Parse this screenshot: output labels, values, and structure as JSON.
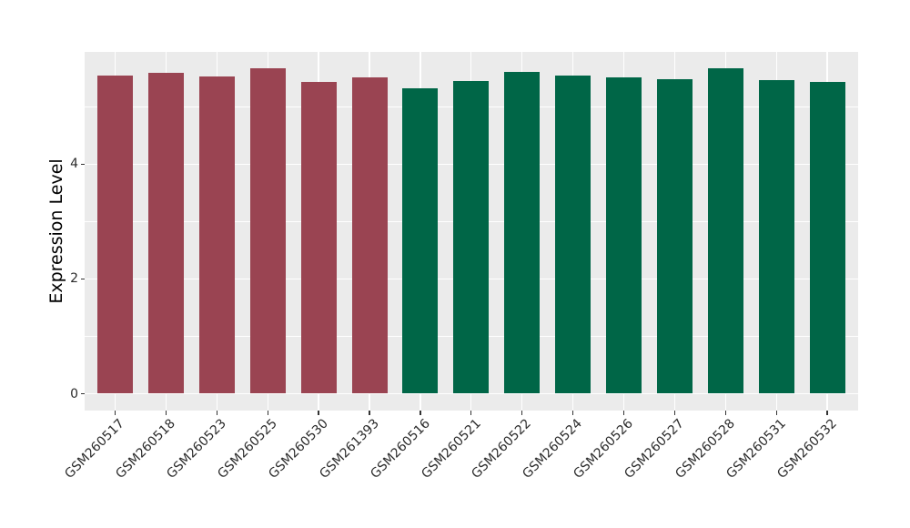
{
  "chart_data": {
    "type": "bar",
    "title": "",
    "xlabel": "",
    "ylabel": "Expression Level",
    "categories": [
      "GSM260517",
      "GSM260518",
      "GSM260523",
      "GSM260525",
      "GSM260530",
      "GSM261393",
      "GSM260516",
      "GSM260521",
      "GSM260522",
      "GSM260524",
      "GSM260526",
      "GSM260527",
      "GSM260528",
      "GSM260531",
      "GSM260532"
    ],
    "values": [
      5.55,
      5.6,
      5.53,
      5.68,
      5.43,
      5.52,
      5.33,
      5.45,
      5.61,
      5.54,
      5.51,
      5.49,
      5.67,
      5.47,
      5.43
    ],
    "groups": [
      "group1",
      "group1",
      "group1",
      "group1",
      "group1",
      "group1",
      "group2",
      "group2",
      "group2",
      "group2",
      "group2",
      "group2",
      "group2",
      "group2",
      "group2"
    ],
    "group_colors": {
      "group1": "#9A4452",
      "group2": "#006647"
    },
    "ytick_labels": [
      "0",
      "2",
      "4"
    ],
    "ytick_values": [
      0,
      2,
      4
    ],
    "minor_tick_values": [
      1,
      3,
      5
    ],
    "ylim": [
      0,
      5.96
    ],
    "legend_position": "none",
    "grid": "major-and-minor-horizontal, vertical-at-category-centers",
    "panel_bg": "#EBEBEB",
    "grid_color": "#FFFFFF"
  }
}
